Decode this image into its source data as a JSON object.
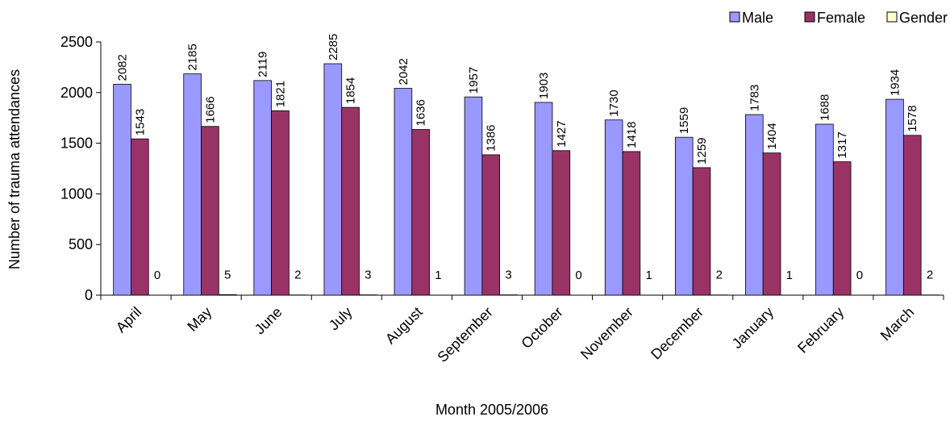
{
  "chart_data": {
    "type": "bar",
    "x_label": "Month 2005/2006",
    "y_label": "Number of trauma attendances",
    "categories": [
      "April",
      "May",
      "June",
      "July",
      "August",
      "September",
      "October",
      "November",
      "December",
      "January",
      "February",
      "March"
    ],
    "series": [
      {
        "name": "Male",
        "color": "#9999ff",
        "values": [
          2082,
          2185,
          2119,
          2285,
          2042,
          1957,
          1903,
          1730,
          1559,
          1783,
          1688,
          1934
        ]
      },
      {
        "name": "Female",
        "color": "#993366",
        "values": [
          1543,
          1666,
          1821,
          1854,
          1636,
          1386,
          1427,
          1418,
          1259,
          1404,
          1317,
          1578
        ]
      },
      {
        "name": "Gender unknown",
        "color": "#ffffcc",
        "values": [
          0,
          5,
          2,
          3,
          1,
          3,
          0,
          1,
          2,
          1,
          0,
          2
        ]
      }
    ],
    "ylim": [
      0,
      2500
    ],
    "yticks": [
      0,
      500,
      1000,
      1500,
      2000,
      2500
    ],
    "grid": false,
    "legend": "top-right"
  }
}
